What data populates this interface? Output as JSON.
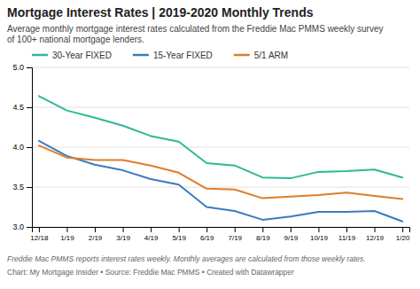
{
  "chart_data": {
    "type": "line",
    "title": "Mortgage Interest Rates | 2019-2020 Monthly Trends",
    "subtitle": "Average monthly mortgage interest rates calculated from the Freddie Mac PMMS weekly survey\nof 100+ national mortgage lenders.",
    "annotations": [
      "Freddie Mac PMMS reports interest rates weekly. Monthly averages are calculated from those weekly rates.",
      "Chart: My Mortgage Insider • Source: Freddie Mac PMMS • Created with Datawrapper"
    ],
    "categories": [
      "12/18",
      "1/19",
      "2/19",
      "3/19",
      "4/19",
      "5/19",
      "6/19",
      "7/19",
      "8/19",
      "9/19",
      "10/19",
      "11/19",
      "12/19",
      "1/20"
    ],
    "series": [
      {
        "name": "30-Year FIXED",
        "color": "#2db898",
        "values": [
          4.64,
          4.46,
          4.37,
          4.27,
          4.14,
          4.07,
          3.8,
          3.77,
          3.62,
          3.61,
          3.69,
          3.7,
          3.72,
          3.62
        ]
      },
      {
        "name": "15-Year FIXED",
        "color": "#3a7abf",
        "values": [
          4.08,
          3.89,
          3.78,
          3.71,
          3.6,
          3.53,
          3.25,
          3.2,
          3.09,
          3.13,
          3.19,
          3.19,
          3.2,
          3.07
        ]
      },
      {
        "name": "5/1 ARM",
        "color": "#e07c2a",
        "values": [
          4.02,
          3.87,
          3.84,
          3.84,
          3.77,
          3.68,
          3.48,
          3.47,
          3.36,
          3.38,
          3.4,
          3.43,
          3.39,
          3.35
        ]
      }
    ],
    "ylim": [
      3.0,
      5.0
    ],
    "yticks": [
      {
        "value": 3.0,
        "label": "3.0"
      },
      3.5,
      {
        "value": 4.0,
        "label": "4.0"
      },
      4.5,
      {
        "value": 5.0,
        "label": "5.0"
      }
    ],
    "grid": true,
    "legend": "top"
  }
}
